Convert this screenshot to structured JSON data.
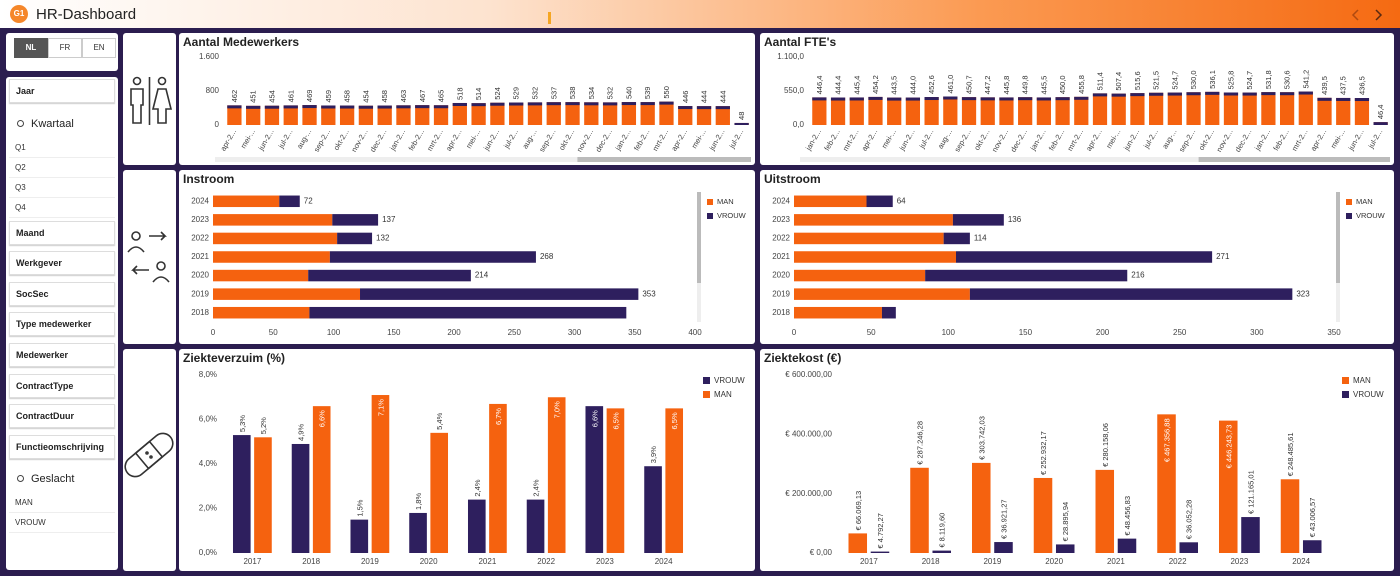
{
  "header": {
    "logo": "G1",
    "title": "HR-Dashboard"
  },
  "sidebar": {
    "languages": [
      "NL",
      "FR",
      "EN"
    ],
    "filters": [
      {
        "label": "Jaar"
      },
      {
        "label": "Kwartaal",
        "items": [
          "Q1",
          "Q2",
          "Q3",
          "Q4"
        ]
      },
      {
        "label": "Maand"
      },
      {
        "label": "Werkgever"
      },
      {
        "label": "SocSec"
      },
      {
        "label": "Type medewerker"
      },
      {
        "label": "Medewerker"
      },
      {
        "label": "ContractType"
      },
      {
        "label": "ContractDuur"
      },
      {
        "label": "Functieomschrijving"
      },
      {
        "label": "Geslacht",
        "items": [
          "MAN",
          "VROUW"
        ]
      }
    ]
  },
  "chart_data": [
    {
      "type": "bar",
      "title": "Aantal Medewerkers",
      "color": "#f5620f",
      "cap_color": "#2e1f5e",
      "categories": [
        "apr-2...",
        "mei-...",
        "jun-2...",
        "jul-2...",
        "aug-...",
        "sep-2...",
        "okt-2...",
        "nov-2...",
        "dec-2...",
        "jan-2...",
        "feb-2...",
        "mrt-2...",
        "apr-2...",
        "mei-...",
        "jun-2...",
        "jul-2...",
        "aug-...",
        "sep-2...",
        "okt-2...",
        "nov-2...",
        "dec-2...",
        "jan-2...",
        "feb-2...",
        "mrt-2...",
        "apr-2...",
        "mei-...",
        "jun-2...",
        "jul-2..."
      ],
      "values": [
        462,
        451,
        454,
        461,
        469,
        459,
        458,
        454,
        458,
        463,
        467,
        465,
        518,
        514,
        524,
        529,
        532,
        537,
        538,
        534,
        532,
        540,
        539,
        550,
        446,
        444,
        444,
        48
      ],
      "ylim": [
        0,
        1600
      ],
      "yticks": [
        0,
        800,
        {
          "value": 1600,
          "label": "1.600"
        }
      ],
      "grid": false
    },
    {
      "type": "bar",
      "title": "Aantal FTE's",
      "color": "#f5620f",
      "cap_color": "#2e1f5e",
      "categories": [
        "jan-2...",
        "feb-2...",
        "mrt-2...",
        "apr-2...",
        "mei-...",
        "jun-2...",
        "jul-2...",
        "aug-...",
        "sep-2...",
        "okt-2...",
        "nov-2...",
        "dec-2...",
        "jan-2...",
        "feb-2...",
        "mrt-2...",
        "apr-2...",
        "mei-...",
        "jun-2...",
        "jul-2...",
        "aug-...",
        "sep-2...",
        "okt-2...",
        "nov-2...",
        "dec-2...",
        "jan-2...",
        "feb-2...",
        "mrt-2...",
        "apr-2...",
        "mei-...",
        "jun-2...",
        "jul-2..."
      ],
      "values": [
        446.4,
        444.4,
        445.4,
        454.2,
        443.5,
        444.0,
        452.6,
        461.0,
        450.7,
        447.2,
        445.8,
        449.8,
        445.5,
        450.0,
        455.8,
        511.4,
        507.4,
        515.6,
        521.5,
        524.7,
        530.0,
        536.1,
        525.8,
        524.7,
        531.8,
        530.6,
        541.2,
        439.5,
        437.5,
        436.5,
        46.4
      ],
      "value_labels": [
        "446,4",
        "444,4",
        "445,4",
        "454,2",
        "443,5",
        "444,0",
        "452,6",
        "461,0",
        "450,7",
        "447,2",
        "445,8",
        "449,8",
        "445,5",
        "450,0",
        "455,8",
        "511,4",
        "507,4",
        "515,6",
        "521,5",
        "524,7",
        "530,0",
        "536,1",
        "525,8",
        "524,7",
        "531,8",
        "530,6",
        "541,2",
        "439,5",
        "437,5",
        "436,5",
        "46,4"
      ],
      "ylim": [
        0,
        1100
      ],
      "yticks": [
        {
          "value": 0,
          "label": "0,0"
        },
        {
          "value": 550,
          "label": "550,0"
        },
        {
          "value": 1100,
          "label": "1.100,0"
        }
      ],
      "grid": false
    },
    {
      "type": "hbar",
      "title": "Instroom",
      "stacked": true,
      "categories": [
        "2024",
        "2023",
        "2022",
        "2021",
        "2020",
        "2019",
        "2018"
      ],
      "series": [
        {
          "name": "MAN",
          "color": "#f5620f",
          "values": [
            55,
            99,
            103,
            97,
            79,
            122,
            80
          ]
        },
        {
          "name": "VROUW",
          "color": "#2e1f5e",
          "values": [
            17,
            38,
            29,
            171,
            135,
            231,
            263
          ]
        }
      ],
      "totals": [
        72,
        137,
        132,
        268,
        214,
        353,
        null
      ],
      "xlim": [
        0,
        400
      ],
      "xticks": [
        0,
        50,
        100,
        150,
        200,
        250,
        300,
        350,
        400
      ],
      "grid": false,
      "legend": "right"
    },
    {
      "type": "hbar",
      "title": "Uitstroom",
      "stacked": true,
      "categories": [
        "2024",
        "2023",
        "2022",
        "2021",
        "2020",
        "2019",
        "2018"
      ],
      "series": [
        {
          "name": "MAN",
          "color": "#f5620f",
          "values": [
            47,
            103,
            97,
            105,
            85,
            114,
            57
          ]
        },
        {
          "name": "VROUW",
          "color": "#2e1f5e",
          "values": [
            17,
            33,
            17,
            166,
            131,
            209,
            9
          ]
        }
      ],
      "totals": [
        64,
        136,
        114,
        271,
        216,
        323,
        null
      ],
      "xlim": [
        0,
        350
      ],
      "xticks": [
        0,
        50,
        100,
        150,
        200,
        250,
        300,
        350
      ],
      "grid": false,
      "legend": "right"
    },
    {
      "type": "bar",
      "title": "Ziekteverzuim (%)",
      "categories": [
        "2017",
        "2018",
        "2019",
        "2020",
        "2021",
        "2022",
        "2023",
        "2024"
      ],
      "series": [
        {
          "name": "VROUW",
          "color": "#2e1f5e",
          "values": [
            5.3,
            4.9,
            1.5,
            1.8,
            2.4,
            2.4,
            6.6,
            3.9
          ],
          "value_labels": [
            "5,3%",
            "4,9%",
            "1,5%",
            "1,8%",
            "2,4%",
            "2,4%",
            "6,6%",
            "3,9%"
          ]
        },
        {
          "name": "MAN",
          "color": "#f5620f",
          "values": [
            5.2,
            6.6,
            7.1,
            5.4,
            6.7,
            7.0,
            6.5,
            6.5
          ],
          "value_labels": [
            "5,2%",
            "6,6%",
            "7,1%",
            "5,4%",
            "6,7%",
            "7,0%",
            "6,5%",
            "6,5%"
          ]
        }
      ],
      "ylim": [
        0,
        8
      ],
      "yticks": [
        {
          "value": 0,
          "label": "0,0%"
        },
        {
          "value": 2,
          "label": "2,0%"
        },
        {
          "value": 4,
          "label": "4,0%"
        },
        {
          "value": 6,
          "label": "6,0%"
        },
        {
          "value": 8,
          "label": "8,0%"
        }
      ],
      "grid": false,
      "legend": "top-right"
    },
    {
      "type": "bar",
      "title": "Ziektekost (€)",
      "categories": [
        "2017",
        "2018",
        "2019",
        "2020",
        "2021",
        "2022",
        "2023",
        "2024"
      ],
      "series": [
        {
          "name": "MAN",
          "color": "#f5620f",
          "values": [
            66069.13,
            287246.28,
            303742.03,
            252932.17,
            280158.06,
            467356.88,
            446243.73,
            248485.61
          ],
          "value_labels": [
            "€ 66.069,13",
            "€ 287.246,28",
            "€ 303.742,03",
            "€ 252.932,17",
            "€ 280.158,06",
            "€ 467.356,88",
            "€ 446.243,73",
            "€ 248.485,61"
          ]
        },
        {
          "name": "VROUW",
          "color": "#2e1f5e",
          "values": [
            4792.27,
            8119.6,
            36921.27,
            28895.94,
            48456.83,
            36052.28,
            121165.01,
            43006.57
          ],
          "value_labels": [
            "€ 4.792,27",
            "€ 8.119,60",
            "€ 36.921,27",
            "€ 28.895,94",
            "€ 48.456,83",
            "€ 36.052,28",
            "€ 121.165,01",
            "€ 43.006,57"
          ]
        }
      ],
      "ylim": [
        0,
        600000
      ],
      "yticks": [
        {
          "value": 0,
          "label": "€ 0,00"
        },
        {
          "value": 200000,
          "label": "€ 200.000,00"
        },
        {
          "value": 400000,
          "label": "€ 400.000,00"
        },
        {
          "value": 600000,
          "label": "€ 600.000,00"
        }
      ],
      "grid": false,
      "legend": "top-right"
    }
  ]
}
